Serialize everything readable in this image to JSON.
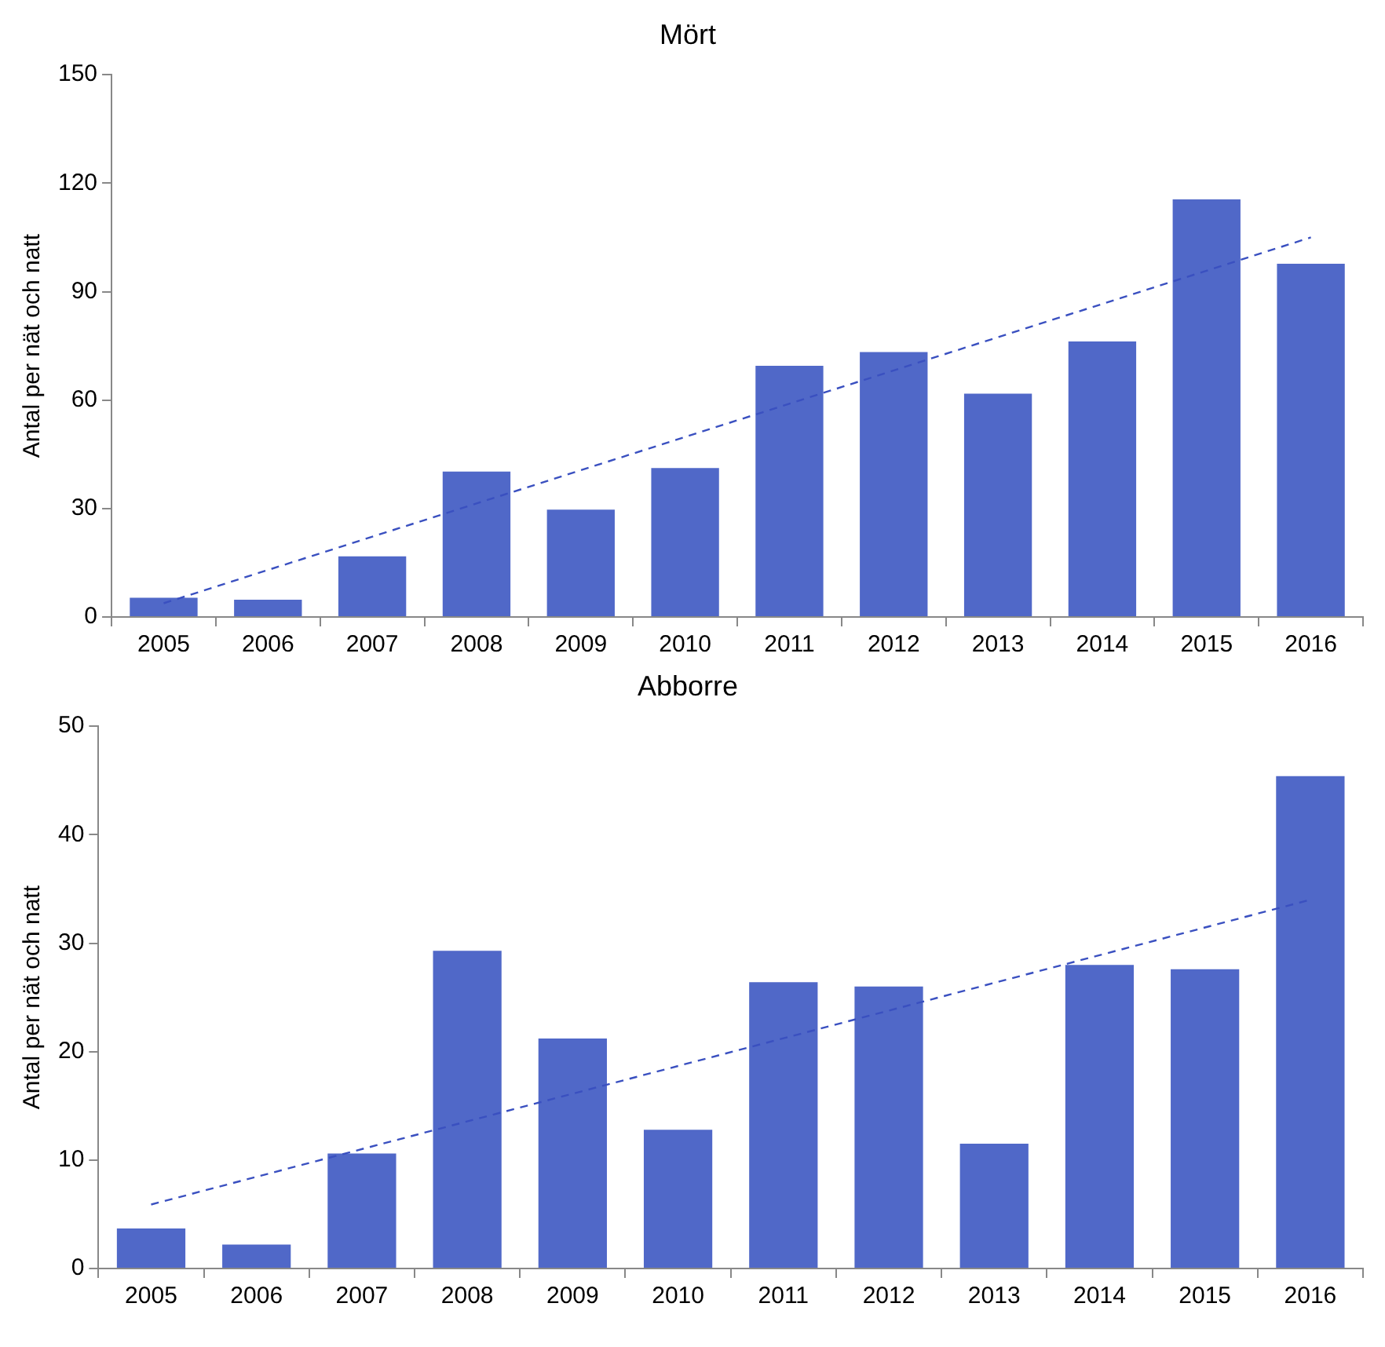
{
  "chart_data": [
    {
      "type": "bar",
      "title": "Mört",
      "ylabel": "Antal per nät och natt",
      "categories": [
        "2005",
        "2006",
        "2007",
        "2008",
        "2009",
        "2010",
        "2011",
        "2012",
        "2013",
        "2014",
        "2015",
        "2016"
      ],
      "ylim": [
        0,
        150
      ],
      "yticks": [
        0,
        30,
        60,
        90,
        120,
        150
      ],
      "grid": false,
      "legend": false,
      "series": [
        {
          "color": "#5068c8",
          "values": [
            5.3,
            4.8,
            16.8,
            40.2,
            29.7,
            41.2,
            69.5,
            73.3,
            61.8,
            76.2,
            115.5,
            97.7
          ]
        },
        {
          "type": "line",
          "color": "#3a50c0",
          "line_style": "dashed",
          "marker": "none",
          "values": [
            3.8,
            null,
            null,
            null,
            null,
            null,
            null,
            null,
            null,
            null,
            null,
            105
          ]
        }
      ]
    },
    {
      "type": "bar",
      "title": "Abborre",
      "ylabel": "Antal per nät och natt",
      "categories": [
        "2005",
        "2006",
        "2007",
        "2008",
        "2009",
        "2010",
        "2011",
        "2012",
        "2013",
        "2014",
        "2015",
        "2016"
      ],
      "ylim": [
        0,
        50
      ],
      "yticks": [
        0,
        10,
        20,
        30,
        40,
        50
      ],
      "grid": false,
      "legend": false,
      "series": [
        {
          "color": "#5068c8",
          "values": [
            3.7,
            2.2,
            10.6,
            29.3,
            21.2,
            12.8,
            26.4,
            26.0,
            11.5,
            28.0,
            27.6,
            45.4
          ]
        },
        {
          "type": "line",
          "color": "#3a50c0",
          "line_style": "dashed",
          "marker": "none",
          "values": [
            5.9,
            null,
            null,
            null,
            null,
            null,
            null,
            null,
            null,
            null,
            null,
            34.0
          ]
        }
      ]
    }
  ]
}
